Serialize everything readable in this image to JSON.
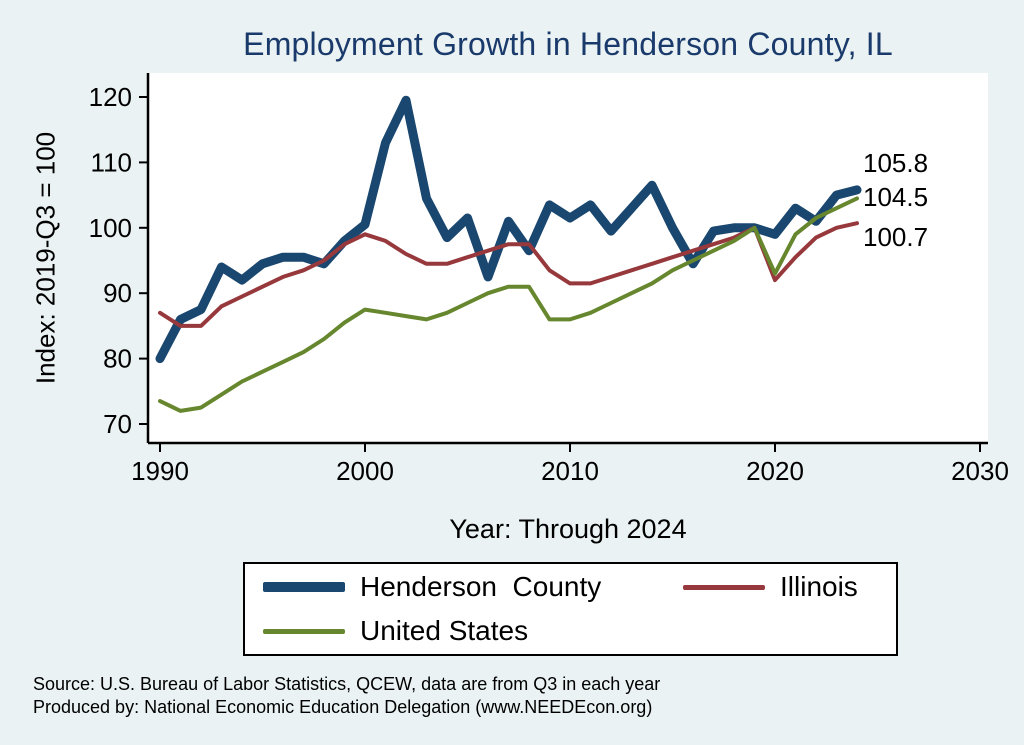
{
  "title": "Employment Growth in Henderson County, IL",
  "colors": {
    "background": "#eaf2f3",
    "plot_background": "#ffffff",
    "title_text": "#1a3a6b",
    "axis": "#000000",
    "henderson_county": "#1a476f",
    "illinois": "#97393c",
    "united_states": "#66872e"
  },
  "chart_data": {
    "type": "line",
    "title": "Employment Growth in Henderson County, IL",
    "xlabel": "Year: Through 2024",
    "ylabel": "Index: 2019-Q3 = 100",
    "x_ticks": [
      1990,
      2000,
      2010,
      2020,
      2030
    ],
    "y_ticks": [
      70,
      80,
      90,
      100,
      110,
      120
    ],
    "xlim": [
      1989.4,
      2030.5
    ],
    "ylim": [
      67,
      124
    ],
    "grid": false,
    "legend_position": "bottom",
    "x": [
      1990,
      1991,
      1992,
      1993,
      1994,
      1995,
      1996,
      1997,
      1998,
      1999,
      2000,
      2001,
      2002,
      2003,
      2004,
      2005,
      2006,
      2007,
      2008,
      2009,
      2010,
      2011,
      2012,
      2013,
      2014,
      2015,
      2016,
      2017,
      2018,
      2019,
      2020,
      2021,
      2022,
      2023,
      2024
    ],
    "series": [
      {
        "name": "Henderson County",
        "color": "#1a476f",
        "width": 9,
        "values": [
          80,
          86,
          87.5,
          94,
          92,
          94.5,
          95.5,
          95.5,
          94.5,
          98,
          100.5,
          113,
          119.5,
          104.5,
          98.5,
          101.5,
          92.5,
          101,
          96.5,
          103.5,
          101.5,
          103.5,
          99.5,
          103,
          106.5,
          100,
          94.5,
          99.5,
          100,
          100,
          99,
          103,
          101,
          105,
          105.8
        ]
      },
      {
        "name": "Illinois",
        "color": "#97393c",
        "width": 4,
        "values": [
          87,
          85,
          85,
          88,
          89.5,
          91,
          92.5,
          93.5,
          95,
          97.5,
          99,
          98,
          96,
          94.5,
          94.5,
          95.5,
          96.5,
          97.5,
          97.5,
          93.5,
          91.5,
          91.5,
          92.5,
          93.5,
          94.5,
          95.5,
          96.5,
          97.5,
          98.5,
          100,
          92,
          95.5,
          98.5,
          100,
          100.7
        ]
      },
      {
        "name": "United States",
        "color": "#66872e",
        "width": 4,
        "values": [
          73.5,
          72,
          72.5,
          74.5,
          76.5,
          78,
          79.5,
          81,
          83,
          85.5,
          87.5,
          87,
          86.5,
          86,
          87,
          88.5,
          90,
          91,
          91,
          86,
          86,
          87,
          88.5,
          90,
          91.5,
          93.5,
          95,
          96.5,
          98,
          100,
          93,
          99,
          101.5,
          103,
          104.5
        ]
      }
    ],
    "end_labels": [
      "105.8",
      "104.5",
      "100.7"
    ]
  },
  "legend": {
    "items": [
      {
        "label": "Henderson  County",
        "series": "henderson_county"
      },
      {
        "label": "Illinois",
        "series": "illinois"
      },
      {
        "label": "United States",
        "series": "united_states"
      }
    ]
  },
  "footer": {
    "line1": "Source: U.S. Bureau of Labor Statistics, QCEW, data are from Q3 in each year",
    "line2": "Produced by: National Economic Education Delegation (www.NEEDEcon.org)"
  }
}
